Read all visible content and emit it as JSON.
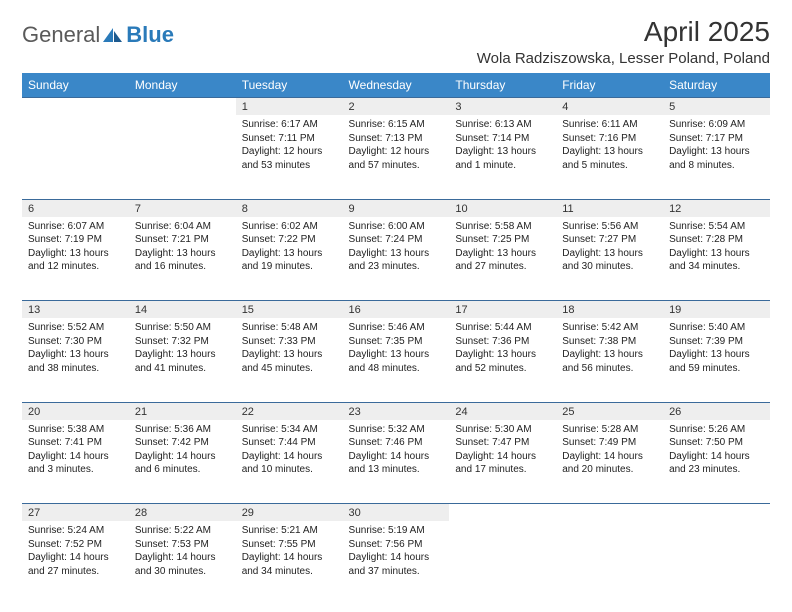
{
  "brand": {
    "general": "General",
    "blue": "Blue"
  },
  "title": "April 2025",
  "location": "Wola Radziszowska, Lesser Poland, Poland",
  "colors": {
    "header_bg": "#3a87c8",
    "header_text": "#ffffff",
    "daynum_bg": "#eeeeee",
    "border": "#3a6a9a",
    "brand_grey": "#5a5a5a",
    "brand_blue": "#2a7ab9"
  },
  "weekdays": [
    "Sunday",
    "Monday",
    "Tuesday",
    "Wednesday",
    "Thursday",
    "Friday",
    "Saturday"
  ],
  "weeks": [
    {
      "nums": [
        "",
        "",
        "1",
        "2",
        "3",
        "4",
        "5"
      ],
      "cells": [
        {},
        {},
        {
          "sunrise": "Sunrise: 6:17 AM",
          "sunset": "Sunset: 7:11 PM",
          "daylight": "Daylight: 12 hours and 53 minutes"
        },
        {
          "sunrise": "Sunrise: 6:15 AM",
          "sunset": "Sunset: 7:13 PM",
          "daylight": "Daylight: 12 hours and 57 minutes."
        },
        {
          "sunrise": "Sunrise: 6:13 AM",
          "sunset": "Sunset: 7:14 PM",
          "daylight": "Daylight: 13 hours and 1 minute."
        },
        {
          "sunrise": "Sunrise: 6:11 AM",
          "sunset": "Sunset: 7:16 PM",
          "daylight": "Daylight: 13 hours and 5 minutes."
        },
        {
          "sunrise": "Sunrise: 6:09 AM",
          "sunset": "Sunset: 7:17 PM",
          "daylight": "Daylight: 13 hours and 8 minutes."
        }
      ]
    },
    {
      "nums": [
        "6",
        "7",
        "8",
        "9",
        "10",
        "11",
        "12"
      ],
      "cells": [
        {
          "sunrise": "Sunrise: 6:07 AM",
          "sunset": "Sunset: 7:19 PM",
          "daylight": "Daylight: 13 hours and 12 minutes."
        },
        {
          "sunrise": "Sunrise: 6:04 AM",
          "sunset": "Sunset: 7:21 PM",
          "daylight": "Daylight: 13 hours and 16 minutes."
        },
        {
          "sunrise": "Sunrise: 6:02 AM",
          "sunset": "Sunset: 7:22 PM",
          "daylight": "Daylight: 13 hours and 19 minutes."
        },
        {
          "sunrise": "Sunrise: 6:00 AM",
          "sunset": "Sunset: 7:24 PM",
          "daylight": "Daylight: 13 hours and 23 minutes."
        },
        {
          "sunrise": "Sunrise: 5:58 AM",
          "sunset": "Sunset: 7:25 PM",
          "daylight": "Daylight: 13 hours and 27 minutes."
        },
        {
          "sunrise": "Sunrise: 5:56 AM",
          "sunset": "Sunset: 7:27 PM",
          "daylight": "Daylight: 13 hours and 30 minutes."
        },
        {
          "sunrise": "Sunrise: 5:54 AM",
          "sunset": "Sunset: 7:28 PM",
          "daylight": "Daylight: 13 hours and 34 minutes."
        }
      ]
    },
    {
      "nums": [
        "13",
        "14",
        "15",
        "16",
        "17",
        "18",
        "19"
      ],
      "cells": [
        {
          "sunrise": "Sunrise: 5:52 AM",
          "sunset": "Sunset: 7:30 PM",
          "daylight": "Daylight: 13 hours and 38 minutes."
        },
        {
          "sunrise": "Sunrise: 5:50 AM",
          "sunset": "Sunset: 7:32 PM",
          "daylight": "Daylight: 13 hours and 41 minutes."
        },
        {
          "sunrise": "Sunrise: 5:48 AM",
          "sunset": "Sunset: 7:33 PM",
          "daylight": "Daylight: 13 hours and 45 minutes."
        },
        {
          "sunrise": "Sunrise: 5:46 AM",
          "sunset": "Sunset: 7:35 PM",
          "daylight": "Daylight: 13 hours and 48 minutes."
        },
        {
          "sunrise": "Sunrise: 5:44 AM",
          "sunset": "Sunset: 7:36 PM",
          "daylight": "Daylight: 13 hours and 52 minutes."
        },
        {
          "sunrise": "Sunrise: 5:42 AM",
          "sunset": "Sunset: 7:38 PM",
          "daylight": "Daylight: 13 hours and 56 minutes."
        },
        {
          "sunrise": "Sunrise: 5:40 AM",
          "sunset": "Sunset: 7:39 PM",
          "daylight": "Daylight: 13 hours and 59 minutes."
        }
      ]
    },
    {
      "nums": [
        "20",
        "21",
        "22",
        "23",
        "24",
        "25",
        "26"
      ],
      "cells": [
        {
          "sunrise": "Sunrise: 5:38 AM",
          "sunset": "Sunset: 7:41 PM",
          "daylight": "Daylight: 14 hours and 3 minutes."
        },
        {
          "sunrise": "Sunrise: 5:36 AM",
          "sunset": "Sunset: 7:42 PM",
          "daylight": "Daylight: 14 hours and 6 minutes."
        },
        {
          "sunrise": "Sunrise: 5:34 AM",
          "sunset": "Sunset: 7:44 PM",
          "daylight": "Daylight: 14 hours and 10 minutes."
        },
        {
          "sunrise": "Sunrise: 5:32 AM",
          "sunset": "Sunset: 7:46 PM",
          "daylight": "Daylight: 14 hours and 13 minutes."
        },
        {
          "sunrise": "Sunrise: 5:30 AM",
          "sunset": "Sunset: 7:47 PM",
          "daylight": "Daylight: 14 hours and 17 minutes."
        },
        {
          "sunrise": "Sunrise: 5:28 AM",
          "sunset": "Sunset: 7:49 PM",
          "daylight": "Daylight: 14 hours and 20 minutes."
        },
        {
          "sunrise": "Sunrise: 5:26 AM",
          "sunset": "Sunset: 7:50 PM",
          "daylight": "Daylight: 14 hours and 23 minutes."
        }
      ]
    },
    {
      "nums": [
        "27",
        "28",
        "29",
        "30",
        "",
        "",
        ""
      ],
      "cells": [
        {
          "sunrise": "Sunrise: 5:24 AM",
          "sunset": "Sunset: 7:52 PM",
          "daylight": "Daylight: 14 hours and 27 minutes."
        },
        {
          "sunrise": "Sunrise: 5:22 AM",
          "sunset": "Sunset: 7:53 PM",
          "daylight": "Daylight: 14 hours and 30 minutes."
        },
        {
          "sunrise": "Sunrise: 5:21 AM",
          "sunset": "Sunset: 7:55 PM",
          "daylight": "Daylight: 14 hours and 34 minutes."
        },
        {
          "sunrise": "Sunrise: 5:19 AM",
          "sunset": "Sunset: 7:56 PM",
          "daylight": "Daylight: 14 hours and 37 minutes."
        },
        {},
        {},
        {}
      ]
    }
  ]
}
